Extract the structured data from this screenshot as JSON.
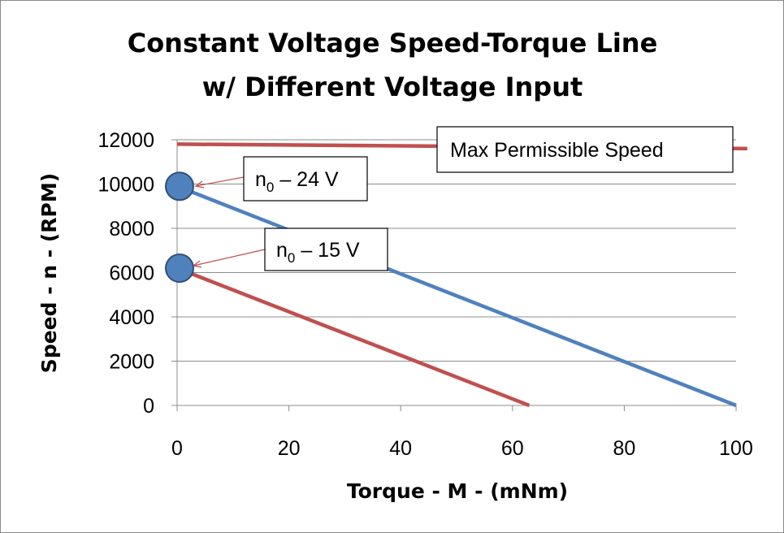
{
  "chart_data": {
    "type": "line",
    "title_lines": [
      "Constant Voltage Speed-Torque Line",
      "w/ Different Voltage Input"
    ],
    "xlabel": "Torque - M - (mNm)",
    "ylabel": "Speed - n - (RPM)",
    "xlim": [
      0,
      100
    ],
    "ylim": [
      0,
      12000
    ],
    "xticks": [
      0,
      20,
      40,
      60,
      80,
      100
    ],
    "yticks": [
      0,
      2000,
      4000,
      6000,
      8000,
      10000,
      12000
    ],
    "grid": "horizontal",
    "series": [
      {
        "name": "24 V",
        "color": "#4f81bd",
        "x": [
          0,
          100
        ],
        "y": [
          9900,
          0
        ]
      },
      {
        "name": "15 V",
        "color": "#c0504d",
        "x": [
          0,
          63
        ],
        "y": [
          6200,
          0
        ]
      },
      {
        "name": "Max Permissible Speed",
        "color": "#c0504d",
        "x": [
          0,
          102
        ],
        "y": [
          11800,
          11600
        ]
      }
    ],
    "markers": [
      {
        "name": "n0 - 24 V",
        "x": 0,
        "y": 9900,
        "color": "#4f81bd"
      },
      {
        "name": "n0 - 15 V",
        "x": 0,
        "y": 6200,
        "color": "#4f81bd"
      }
    ],
    "annotations": [
      {
        "id": "max",
        "text": "Max Permissible Speed"
      },
      {
        "id": "n24",
        "main": "n",
        "sub": "0",
        "rest": " – 24 V"
      },
      {
        "id": "n15",
        "main": "n",
        "sub": "0",
        "rest": " – 15 V"
      }
    ]
  }
}
